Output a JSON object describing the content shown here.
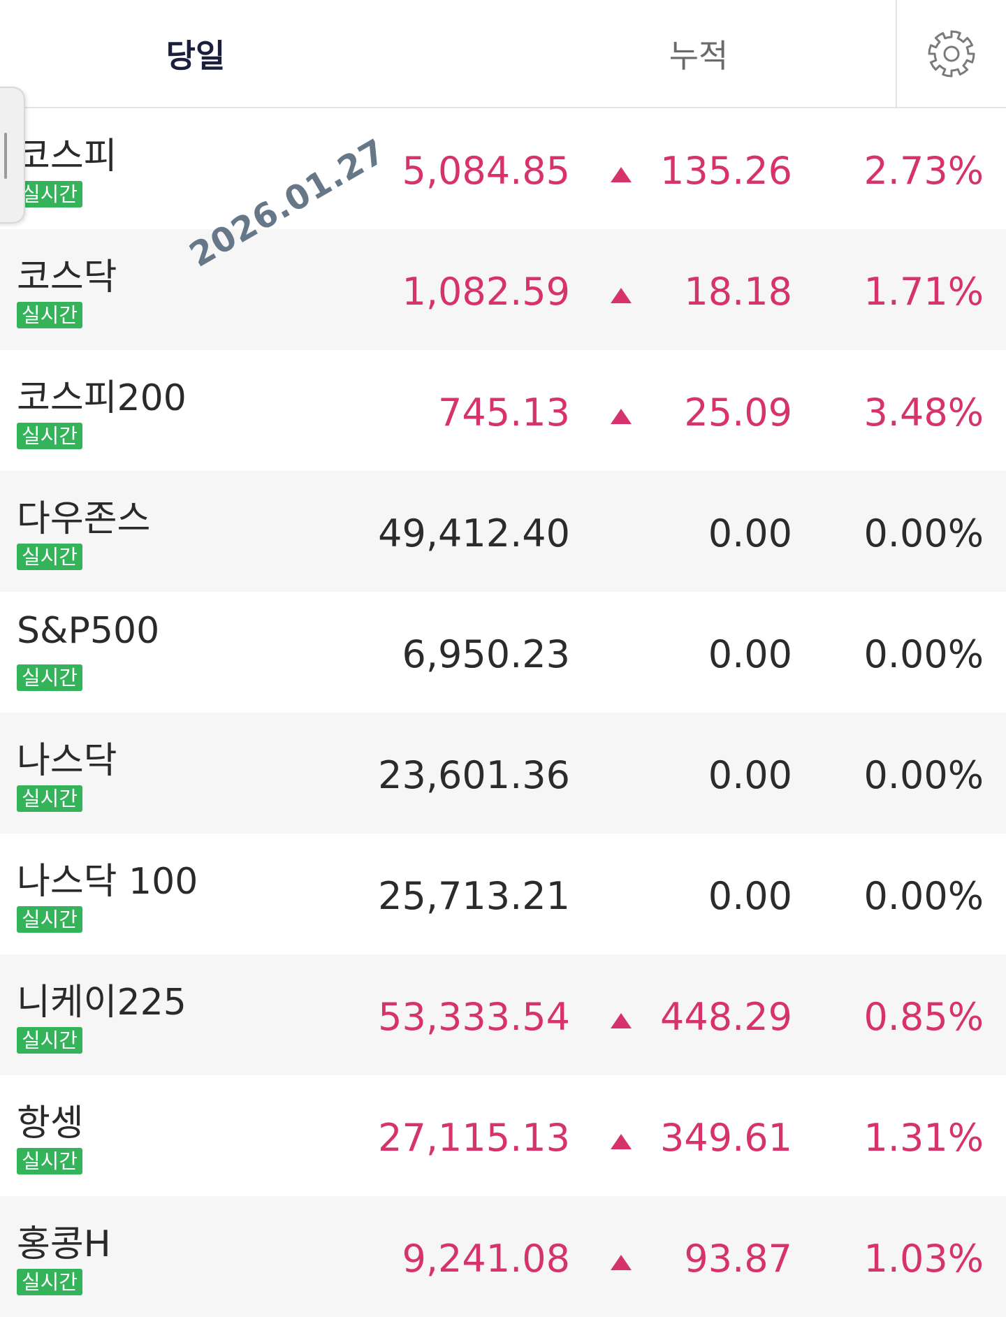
{
  "tabs": {
    "daily": "당일",
    "cumulative": "누적"
  },
  "settings_icon": "gear-icon",
  "watermark_date": "2026.01.27",
  "colors": {
    "up": "#d6336c",
    "flat": "#2b2b2b",
    "badge": "#34b35a",
    "header_active": "#1a1f3c"
  },
  "rows": [
    {
      "name": "코스피",
      "badge": "실시간",
      "value": "5,084.85",
      "change": "135.26",
      "rate": "2.73%",
      "direction": "up"
    },
    {
      "name": "코스닥",
      "badge": "실시간",
      "value": "1,082.59",
      "change": "18.18",
      "rate": "1.71%",
      "direction": "up"
    },
    {
      "name": "코스피200",
      "badge": "실시간",
      "value": "745.13",
      "change": "25.09",
      "rate": "3.48%",
      "direction": "up"
    },
    {
      "name": "다우존스",
      "badge": "실시간",
      "value": "49,412.40",
      "change": "0.00",
      "rate": "0.00%",
      "direction": "flat"
    },
    {
      "name": "S&P500",
      "badge": "실시간",
      "value": "6,950.23",
      "change": "0.00",
      "rate": "0.00%",
      "direction": "flat"
    },
    {
      "name": "나스닥",
      "badge": "실시간",
      "value": "23,601.36",
      "change": "0.00",
      "rate": "0.00%",
      "direction": "flat"
    },
    {
      "name": "나스닥 100",
      "badge": "실시간",
      "value": "25,713.21",
      "change": "0.00",
      "rate": "0.00%",
      "direction": "flat"
    },
    {
      "name": "니케이225",
      "badge": "실시간",
      "value": "53,333.54",
      "change": "448.29",
      "rate": "0.85%",
      "direction": "up"
    },
    {
      "name": "항셍",
      "badge": "실시간",
      "value": "27,115.13",
      "change": "349.61",
      "rate": "1.31%",
      "direction": "up"
    },
    {
      "name": "홍콩H",
      "badge": "실시간",
      "value": "9,241.08",
      "change": "93.87",
      "rate": "1.03%",
      "direction": "up"
    }
  ]
}
